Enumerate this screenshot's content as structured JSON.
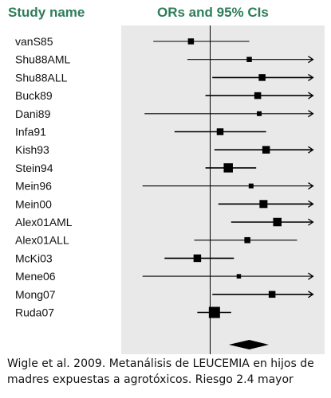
{
  "header": {
    "study_name": "Study name",
    "ors_title": "ORs and 95% CIs"
  },
  "caption": {
    "line1": "Wigle et al. 2009. Metanálisis de LEUCEMIA en hijos de",
    "line2": "madres expuestas a agrotóxicos. Riesgo 2.4 mayor"
  },
  "colors": {
    "header": "#2e7d5a",
    "panel": "#e9e9e9",
    "marks": "#000000"
  },
  "chart_data": {
    "type": "forest",
    "xlabel": "",
    "ylabel": "",
    "x_scale": "log",
    "null_value": 1,
    "xlim": [
      0.2,
      10
    ],
    "studies": [
      {
        "name": "vanS85",
        "or": 0.65,
        "lower": 0.28,
        "upper": 2.4,
        "weight": 0.35,
        "arrow": false
      },
      {
        "name": "Shu88AML",
        "or": 2.4,
        "lower": 0.6,
        "upper": 10,
        "weight": 0.25,
        "arrow": true
      },
      {
        "name": "Shu88ALL",
        "or": 3.2,
        "lower": 1.05,
        "upper": 10,
        "weight": 0.45,
        "arrow": true
      },
      {
        "name": "Buck89",
        "or": 2.9,
        "lower": 0.9,
        "upper": 10,
        "weight": 0.45,
        "arrow": true
      },
      {
        "name": "Dani89",
        "or": 3.0,
        "lower": 0.23,
        "upper": 10,
        "weight": 0.2,
        "arrow": true
      },
      {
        "name": "Infa91",
        "or": 1.25,
        "lower": 0.45,
        "upper": 3.5,
        "weight": 0.45,
        "arrow": false
      },
      {
        "name": "Kish93",
        "or": 3.5,
        "lower": 1.1,
        "upper": 10,
        "weight": 0.55,
        "arrow": true
      },
      {
        "name": "Stein94",
        "or": 1.5,
        "lower": 0.9,
        "upper": 2.8,
        "weight": 0.75,
        "arrow": false
      },
      {
        "name": "Mein96",
        "or": 2.5,
        "lower": 0.22,
        "upper": 10,
        "weight": 0.2,
        "arrow": true
      },
      {
        "name": "Mein00",
        "or": 3.3,
        "lower": 1.2,
        "upper": 10,
        "weight": 0.6,
        "arrow": true
      },
      {
        "name": "Alex01AML",
        "or": 4.5,
        "lower": 1.6,
        "upper": 10,
        "weight": 0.65,
        "arrow": true
      },
      {
        "name": "Alex01ALL",
        "or": 2.3,
        "lower": 0.7,
        "upper": 7,
        "weight": 0.35,
        "arrow": false
      },
      {
        "name": "McKi03",
        "or": 0.75,
        "lower": 0.36,
        "upper": 1.7,
        "weight": 0.55,
        "arrow": false
      },
      {
        "name": "Mene06",
        "or": 1.9,
        "lower": 0.22,
        "upper": 10,
        "weight": 0.15,
        "arrow": true
      },
      {
        "name": "Mong07",
        "or": 4.0,
        "lower": 1.05,
        "upper": 10,
        "weight": 0.45,
        "arrow": true
      },
      {
        "name": "Ruda07",
        "or": 1.1,
        "lower": 0.75,
        "upper": 1.6,
        "weight": 1.0,
        "arrow": false
      }
    ],
    "summary": {
      "or": 2.4,
      "lower": 1.95,
      "upper": 3.0
    }
  }
}
